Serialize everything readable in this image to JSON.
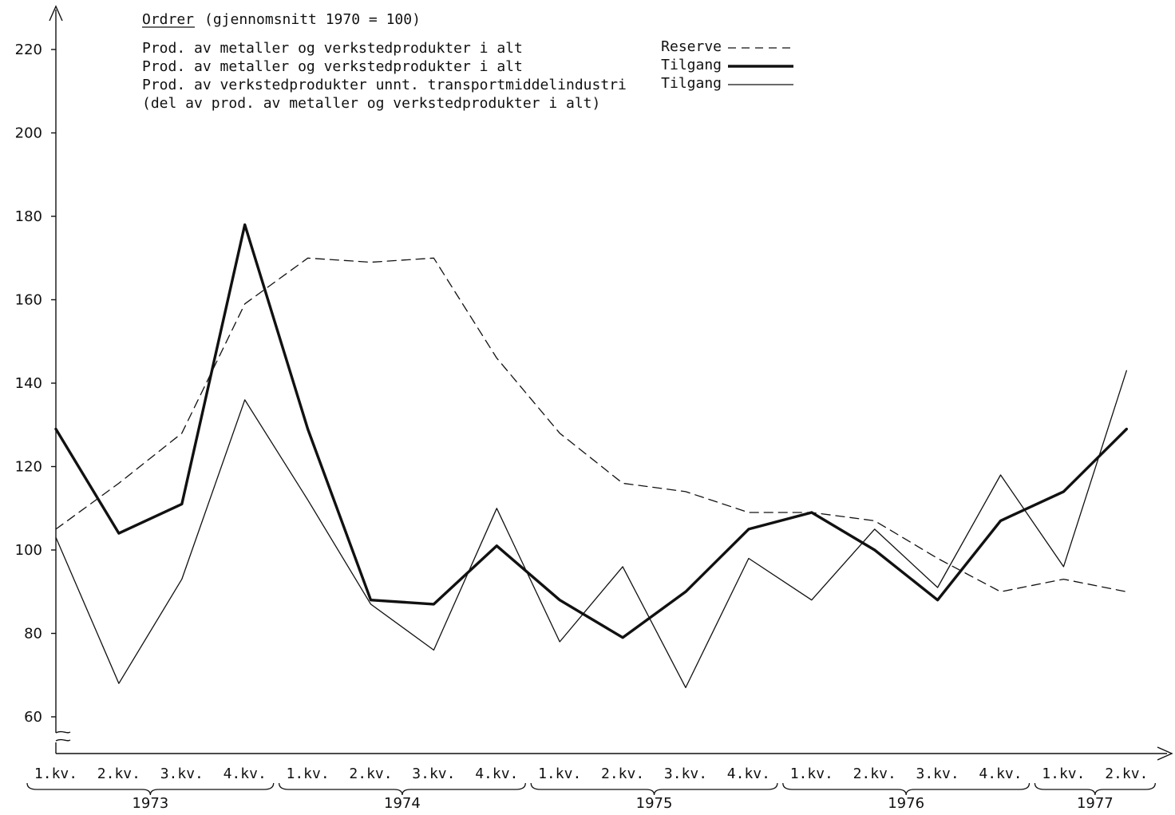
{
  "chart_data": {
    "type": "line",
    "title": "Ordrer",
    "subtitle": "(gjennomsnitt 1970 = 100)",
    "legend": [
      {
        "label": "Prod. av metaller og verkstedprodukter i alt",
        "key": "Reserve"
      },
      {
        "label": "Prod. av metaller og verkstedprodukter i alt",
        "key": "Tilgang"
      },
      {
        "label": "Prod. av verkstedprodukter unnt. transportmiddelindustri",
        "key": "Tilgang"
      },
      {
        "label": "(del av prod. av metaller og verkstedprodukter i alt)",
        "key": ""
      }
    ],
    "legend_placement": "top",
    "x": [
      "1.kv.",
      "2.kv.",
      "3.kv.",
      "4.kv.",
      "1.kv.",
      "2.kv.",
      "3.kv.",
      "4.kv.",
      "1.kv.",
      "2.kv.",
      "3.kv.",
      "4.kv.",
      "1.kv.",
      "2.kv.",
      "3.kv.",
      "4.kv.",
      "1.kv.",
      "2.kv."
    ],
    "year_groups": [
      {
        "label": "1973",
        "start": 0,
        "end": 3
      },
      {
        "label": "1974",
        "start": 4,
        "end": 7
      },
      {
        "label": "1975",
        "start": 8,
        "end": 11
      },
      {
        "label": "1976",
        "start": 12,
        "end": 15
      },
      {
        "label": "1977",
        "start": 16,
        "end": 17
      }
    ],
    "yticks": [
      60,
      80,
      100,
      120,
      140,
      160,
      180,
      200,
      220
    ],
    "ylim": [
      50,
      230
    ],
    "grid": false,
    "series": [
      {
        "name": "Reserve",
        "style": "dashed",
        "values": [
          105,
          116,
          128,
          159,
          170,
          169,
          170,
          146,
          128,
          116,
          114,
          109,
          109,
          107,
          98,
          90,
          93,
          90
        ]
      },
      {
        "name": "Tilgang (metaller og verkstedprodukter i alt)",
        "style": "thick",
        "values": [
          129,
          104,
          111,
          178,
          129,
          88,
          87,
          101,
          88,
          79,
          90,
          105,
          109,
          100,
          88,
          107,
          114,
          129
        ]
      },
      {
        "name": "Tilgang (verkstedprodukter unnt. transportmiddelindustri)",
        "style": "thin",
        "values": [
          103,
          68,
          93,
          136,
          112,
          87,
          76,
          110,
          78,
          96,
          67,
          98,
          88,
          105,
          91,
          118,
          96,
          143
        ]
      }
    ]
  }
}
